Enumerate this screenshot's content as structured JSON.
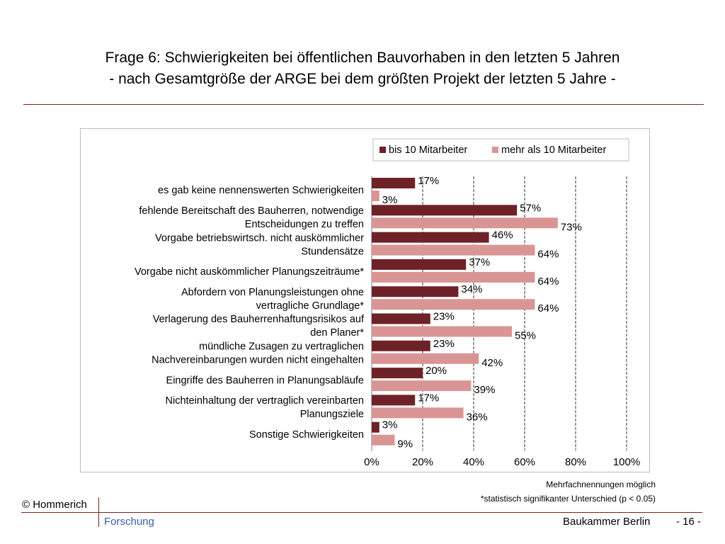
{
  "header": {
    "title_line1": "Frage 6: Schwierigkeiten bei öffentlichen Bauvorhaben in den letzten 5 Jahren",
    "title_line2": "- nach Gesamtgröße der ARGE bei dem größten Projekt der letzten 5 Jahre -"
  },
  "chart_data": {
    "type": "bar",
    "orientation": "horizontal",
    "categories": [
      [
        "es gab keine nennenswerten Schwierigkeiten"
      ],
      [
        "fehlende Bereitschaft des Bauherren, notwendige",
        "Entscheidungen zu treffen"
      ],
      [
        "Vorgabe betriebswirtsch. nicht auskömmlicher",
        "Stundensätze"
      ],
      [
        "Vorgabe nicht auskömmlicher Planungszeiträume*"
      ],
      [
        "Abfordern von Planungsleistungen ohne",
        "vertragliche Grundlage*"
      ],
      [
        "Verlagerung des Bauherrenhaftungsrisikos auf",
        "den Planer*"
      ],
      [
        "mündliche Zusagen zu vertraglichen",
        "Nachvereinbarungen wurden nicht eingehalten"
      ],
      [
        "Eingriffe des Bauherren in Planungsabläufe"
      ],
      [
        "Nichteinhaltung der vertraglich vereinbarten",
        "Planungsziele"
      ],
      [
        "Sonstige Schwierigkeiten"
      ]
    ],
    "series": [
      {
        "name": "bis 10 Mitarbeiter",
        "color": "#6e2228",
        "values": [
          17,
          57,
          46,
          37,
          34,
          23,
          23,
          20,
          17,
          3
        ]
      },
      {
        "name": "mehr als 10 Mitarbeiter",
        "color": "#d99594",
        "values": [
          3,
          73,
          64,
          64,
          64,
          55,
          42,
          39,
          36,
          9
        ]
      }
    ],
    "xlim": [
      0,
      100
    ],
    "xticks": [
      "0%",
      "20%",
      "40%",
      "60%",
      "80%",
      "100%"
    ],
    "value_suffix": "%",
    "grid": "vertical dashed",
    "legend_position": "top-right"
  },
  "notes": {
    "line1": "Mehrfachnennungen möglich",
    "line2": "*statistisch signifikanter Unterschied  (p < 0.05)"
  },
  "footer": {
    "copyright": "© Hommerich",
    "brand": "Forschung",
    "client": "Baukammer Berlin",
    "page": "- 16 -"
  },
  "colors": {
    "rule": "#7a1f1f",
    "brand": "#3b5ea8"
  }
}
